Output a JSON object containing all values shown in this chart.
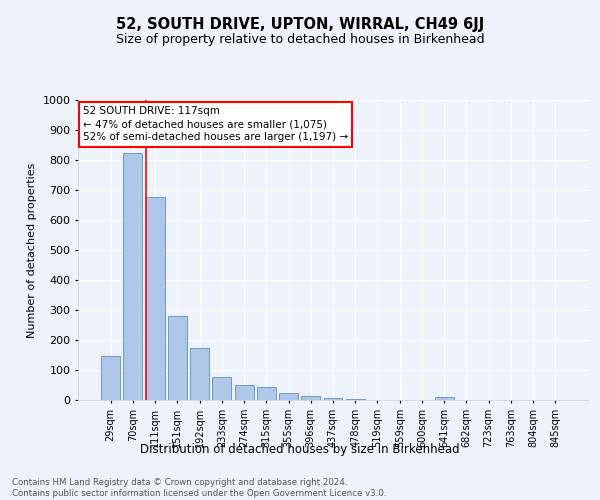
{
  "title": "52, SOUTH DRIVE, UPTON, WIRRAL, CH49 6JJ",
  "subtitle": "Size of property relative to detached houses in Birkenhead",
  "xlabel": "Distribution of detached houses by size in Birkenhead",
  "ylabel": "Number of detached properties",
  "categories": [
    "29sqm",
    "70sqm",
    "111sqm",
    "151sqm",
    "192sqm",
    "233sqm",
    "274sqm",
    "315sqm",
    "355sqm",
    "396sqm",
    "437sqm",
    "478sqm",
    "519sqm",
    "559sqm",
    "600sqm",
    "641sqm",
    "682sqm",
    "723sqm",
    "763sqm",
    "804sqm",
    "845sqm"
  ],
  "values": [
    148,
    822,
    678,
    280,
    172,
    78,
    50,
    42,
    22,
    13,
    8,
    5,
    0,
    0,
    0,
    10,
    0,
    0,
    0,
    0,
    0
  ],
  "bar_color": "#aec6e8",
  "bar_edge_color": "#6090c0",
  "property_label": "52 SOUTH DRIVE: 117sqm",
  "annotation_line1": "← 47% of detached houses are smaller (1,075)",
  "annotation_line2": "52% of semi-detached houses are larger (1,197) →",
  "ylim": [
    0,
    1000
  ],
  "yticks": [
    0,
    100,
    200,
    300,
    400,
    500,
    600,
    700,
    800,
    900,
    1000
  ],
  "background_color": "#eef2fb",
  "grid_color": "#ffffff",
  "red_line_index": 2,
  "footer_line1": "Contains HM Land Registry data © Crown copyright and database right 2024.",
  "footer_line2": "Contains public sector information licensed under the Open Government Licence v3.0."
}
